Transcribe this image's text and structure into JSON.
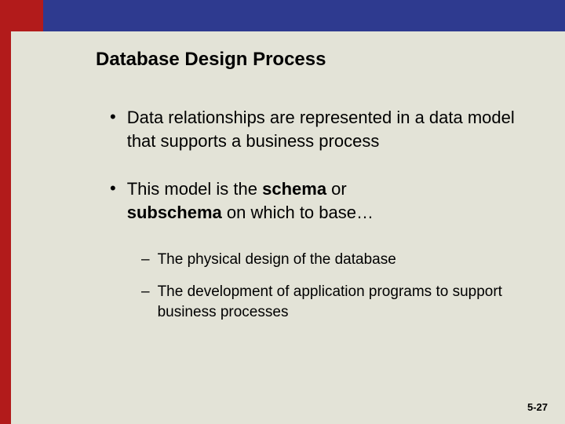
{
  "slide": {
    "title": "Database Design Process",
    "bullets": [
      {
        "text": "Data relationships are represented in a data model that supports a business process"
      },
      {
        "prefix": "This model is the ",
        "bold1": "schema",
        "mid": " or ",
        "bold2": "subschema",
        "suffix": " on which to base…"
      }
    ],
    "subbullets": [
      "The physical design of the database",
      "The development of application programs to support business processes"
    ],
    "pageNumber": "5-27"
  },
  "styles": {
    "background_color": "#e3e3d7",
    "header_red": "#b21b1b",
    "header_blue": "#2e3a8f",
    "title_fontsize": 24,
    "bullet_fontsize": 22,
    "subbullet_fontsize": 19,
    "text_color": "#000000"
  }
}
